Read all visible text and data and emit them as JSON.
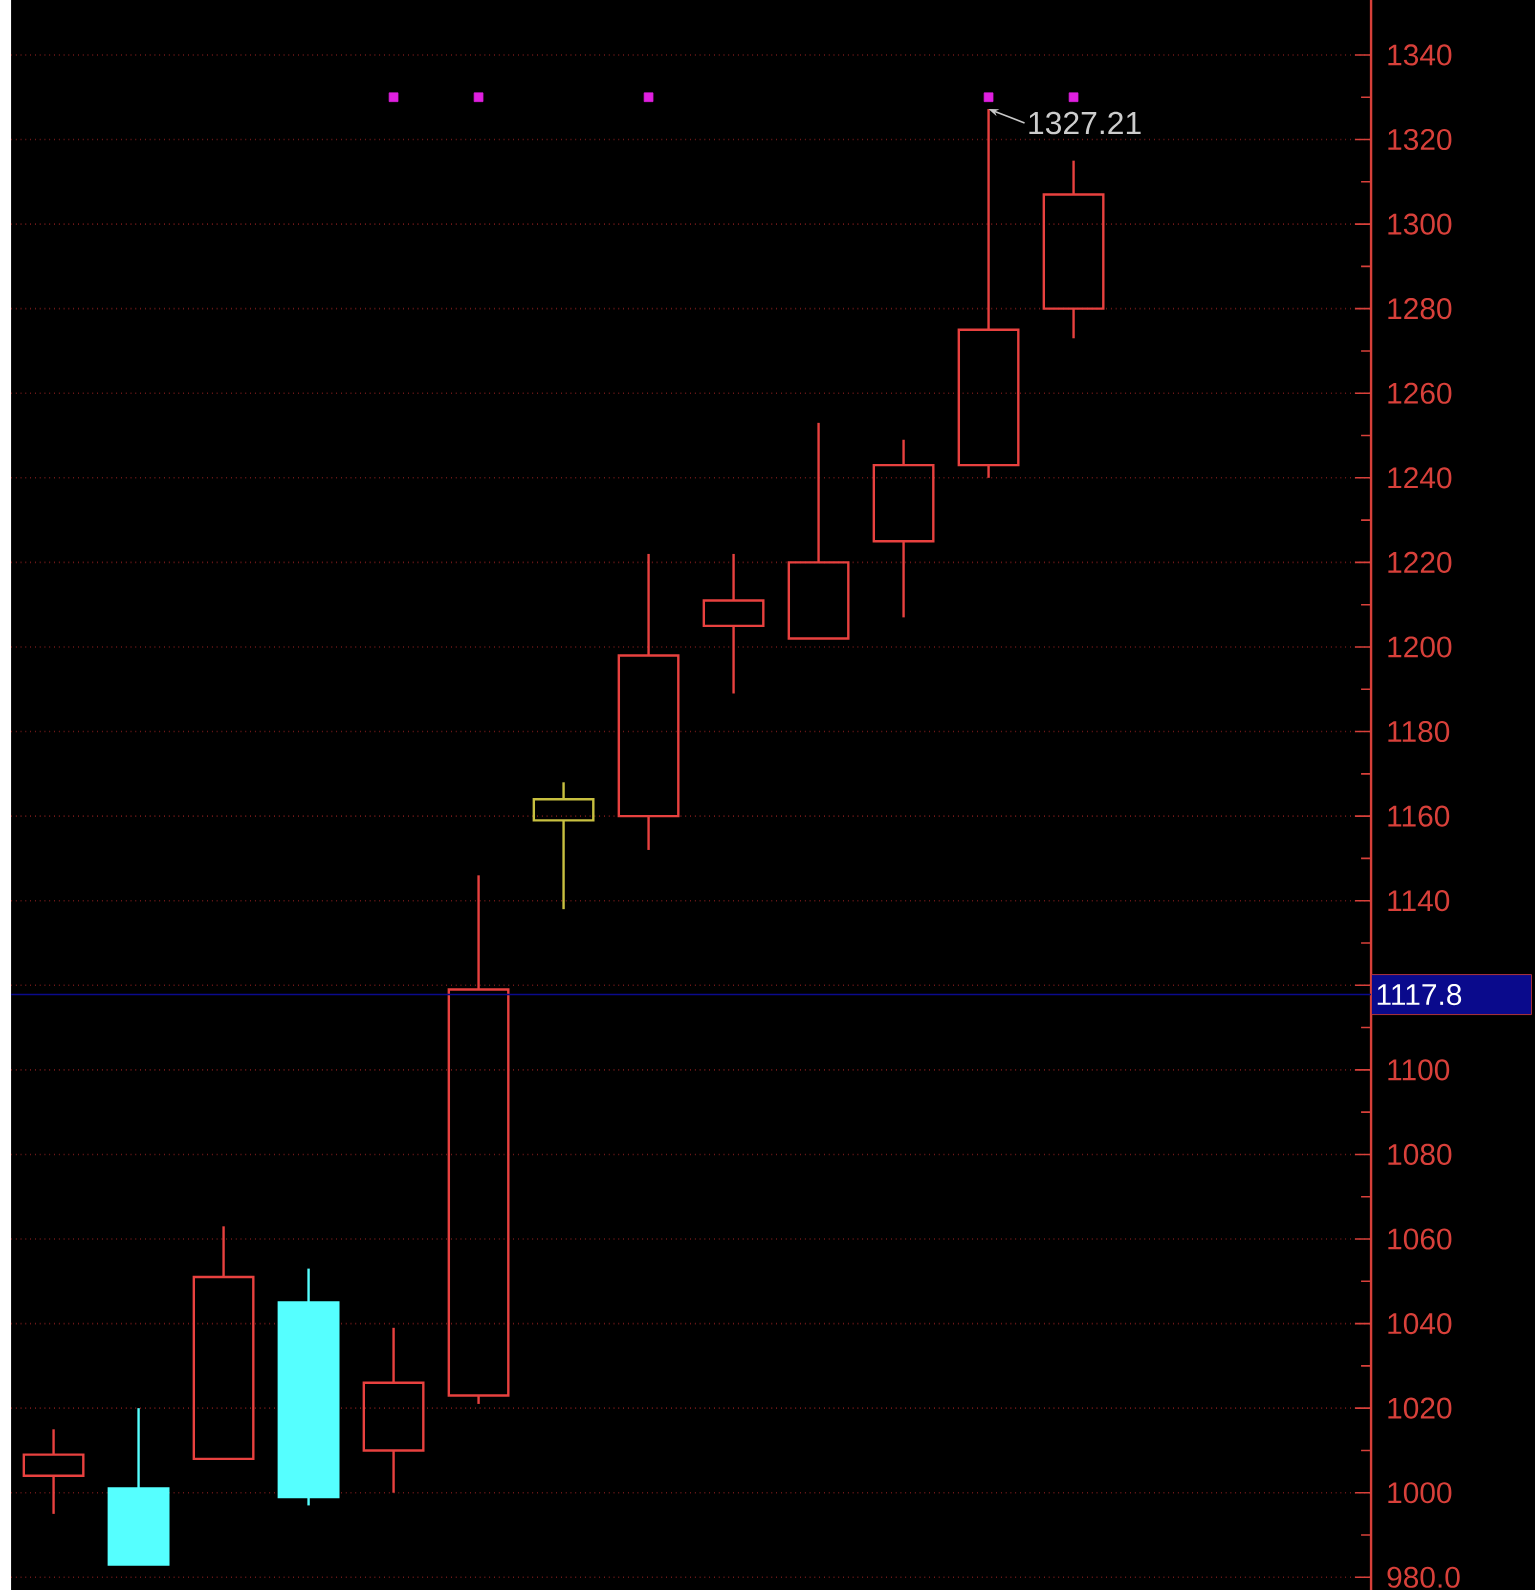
{
  "chart_data": {
    "type": "candlestick",
    "categories": [
      null,
      null,
      null,
      null,
      null,
      null,
      null,
      null,
      null,
      null,
      null,
      null,
      null,
      null,
      null,
      null
    ],
    "ohlc": [
      [
        1004,
        1015,
        995,
        1009
      ],
      [
        1001,
        1020,
        983,
        983
      ],
      [
        1008,
        1063,
        1008,
        1051
      ],
      [
        1045,
        1053,
        997,
        999
      ],
      [
        1010,
        1039,
        1000,
        1026
      ],
      [
        1023,
        1146,
        1021,
        1119
      ],
      [
        1159,
        1168,
        1138,
        1164
      ],
      [
        1160,
        1222,
        1152,
        1198
      ],
      [
        1205,
        1222,
        1189,
        1211
      ],
      [
        1202,
        1253,
        1202,
        1220
      ],
      [
        1225,
        1249,
        1207,
        1243
      ],
      [
        1243,
        1327.21,
        1240,
        1275
      ],
      [
        1280,
        1315,
        1273,
        1307
      ],
      null,
      null,
      null
    ],
    "colors": [
      "#e8413f",
      "#55ffff",
      "#e8413f",
      "#55ffff",
      "#e8413f",
      "#e8413f",
      "#c8c040",
      "#e8413f",
      "#e8413f",
      "#e8413f",
      "#e8413f",
      "#e8413f",
      "#e8413f",
      null,
      null,
      null
    ],
    "series": [
      {
        "type": "scatter",
        "color": "#e020e0",
        "values": [
          null,
          null,
          null,
          null,
          1330,
          1330,
          null,
          1330,
          null,
          null,
          null,
          1330,
          1330,
          null,
          null,
          null
        ]
      }
    ],
    "marker": "square",
    "ylim": [
      977,
      1353
    ],
    "yticks": [
      {
        "value": 980,
        "label": "980.0"
      },
      1000,
      1020,
      1040,
      1060,
      1080,
      1100,
      {
        "value": 1120,
        "label": null
      },
      1140,
      1160,
      1180,
      1200,
      1220,
      1240,
      1260,
      1280,
      1300,
      1320,
      1340
    ],
    "grid": "y",
    "tick_labels": "y",
    "ref_lines": [
      {
        "axis": "y",
        "value": 1117.8,
        "label": "1117.8",
        "color": "#0a0a8c"
      }
    ],
    "annotations": [
      "1327.21"
    ]
  }
}
